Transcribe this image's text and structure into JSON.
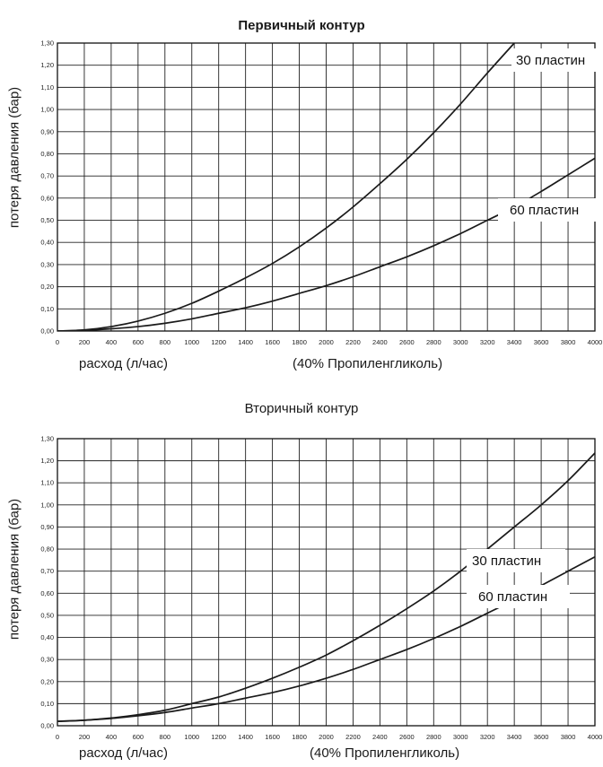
{
  "chart_data": [
    {
      "type": "line",
      "title": "Первичный контур",
      "xlabel": "расход (л/час)",
      "ylabel": "потеря давления (бар)",
      "note": "(40% Пропиленгликоль)",
      "xlim": [
        0,
        4000
      ],
      "ylim": [
        0,
        1.3
      ],
      "grid": true,
      "x_ticks": [
        0,
        200,
        400,
        600,
        800,
        1000,
        1200,
        1400,
        1600,
        1800,
        2000,
        2200,
        2400,
        2600,
        2800,
        3000,
        3200,
        3400,
        3600,
        3800,
        4000
      ],
      "x_tick_labels": [
        "0",
        "200",
        "400",
        "600",
        "800",
        "1000",
        "1200",
        "1400",
        "1600",
        "1800",
        "2000",
        "2200",
        "2400",
        "2600",
        "2800",
        "3000",
        "3200",
        "3400",
        "3600",
        "3800",
        "4000"
      ],
      "y_ticks": [
        0,
        0.1,
        0.2,
        0.3,
        0.4,
        0.5,
        0.6,
        0.7,
        0.8,
        0.9,
        1.0,
        1.1,
        1.2,
        1.3
      ],
      "y_tick_labels": [
        "0,00",
        "0,10",
        "0,20",
        "0,30",
        "0,40",
        "0,50",
        "0,60",
        "0,70",
        "0,80",
        "0,90",
        "1,00",
        "1,10",
        "1,20",
        "1,30"
      ],
      "series": [
        {
          "name": "30 пластин",
          "x": [
            0,
            200,
            400,
            600,
            800,
            1000,
            1200,
            1400,
            1600,
            1800,
            2000,
            2200,
            2400,
            2600,
            2800,
            3000,
            3200,
            3400
          ],
          "values": [
            0,
            0.005,
            0.02,
            0.045,
            0.08,
            0.125,
            0.18,
            0.24,
            0.305,
            0.38,
            0.465,
            0.56,
            0.665,
            0.775,
            0.895,
            1.025,
            1.165,
            1.3
          ]
        },
        {
          "name": "60 пластин",
          "x": [
            0,
            200,
            400,
            600,
            800,
            1000,
            1200,
            1400,
            1600,
            1800,
            2000,
            2200,
            2400,
            2600,
            2800,
            3000,
            3200,
            3400,
            3600,
            3800,
            4000
          ],
          "values": [
            0,
            0.003,
            0.01,
            0.02,
            0.035,
            0.055,
            0.08,
            0.105,
            0.135,
            0.17,
            0.205,
            0.245,
            0.29,
            0.335,
            0.385,
            0.44,
            0.5,
            0.56,
            0.63,
            0.705,
            0.78
          ]
        }
      ]
    },
    {
      "type": "line",
      "title": "Вторичный контур",
      "xlabel": "расход (л/час)",
      "ylabel": "потеря давления (бар)",
      "note": "(40% Пропиленгликоль)",
      "xlim": [
        0,
        4000
      ],
      "ylim": [
        0,
        1.3
      ],
      "grid": true,
      "x_ticks": [
        0,
        200,
        400,
        600,
        800,
        1000,
        1200,
        1400,
        1600,
        1800,
        2000,
        2200,
        2400,
        2600,
        2800,
        3000,
        3200,
        3400,
        3600,
        3800,
        4000
      ],
      "x_tick_labels": [
        "0",
        "200",
        "400",
        "600",
        "800",
        "1000",
        "1200",
        "1400",
        "1600",
        "1800",
        "2000",
        "2200",
        "2400",
        "2600",
        "2800",
        "3000",
        "3200",
        "3400",
        "3600",
        "3800",
        "4000"
      ],
      "y_ticks": [
        0,
        0.1,
        0.2,
        0.3,
        0.4,
        0.5,
        0.6,
        0.7,
        0.8,
        0.9,
        1.0,
        1.1,
        1.2,
        1.3
      ],
      "y_tick_labels": [
        "0,00",
        "0,10",
        "0,20",
        "0,30",
        "0,40",
        "0,50",
        "0,60",
        "0,70",
        "0,80",
        "0,90",
        "1,00",
        "1,10",
        "1,20",
        "1,30"
      ],
      "series": [
        {
          "name": "30 пластин",
          "x": [
            0,
            200,
            400,
            600,
            800,
            1000,
            1200,
            1400,
            1600,
            1800,
            2000,
            2200,
            2400,
            2600,
            2800,
            3000,
            3200,
            3400,
            3600,
            3800,
            4000
          ],
          "values": [
            0.02,
            0.025,
            0.035,
            0.05,
            0.07,
            0.1,
            0.13,
            0.17,
            0.215,
            0.265,
            0.32,
            0.385,
            0.455,
            0.53,
            0.61,
            0.7,
            0.8,
            0.9,
            1.0,
            1.11,
            1.235
          ]
        },
        {
          "name": "60 пластин",
          "x": [
            0,
            200,
            400,
            600,
            800,
            1000,
            1200,
            1400,
            1600,
            1800,
            2000,
            2200,
            2400,
            2600,
            2800,
            3000,
            3200,
            3400,
            3600,
            3800,
            4000
          ],
          "values": [
            0.02,
            0.025,
            0.033,
            0.045,
            0.06,
            0.08,
            0.1,
            0.125,
            0.15,
            0.18,
            0.215,
            0.255,
            0.3,
            0.345,
            0.395,
            0.45,
            0.51,
            0.57,
            0.635,
            0.7,
            0.765
          ]
        }
      ]
    }
  ]
}
